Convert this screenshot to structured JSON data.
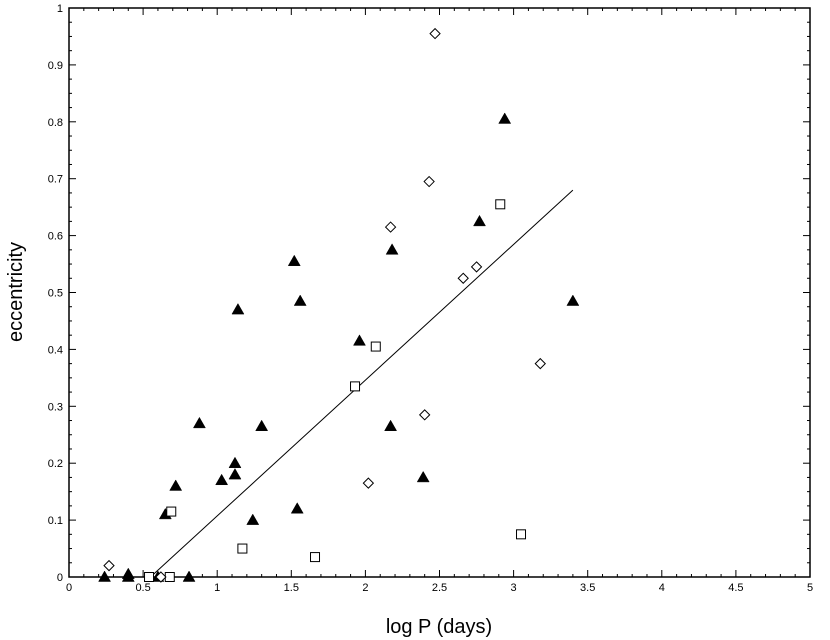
{
  "chart_data": {
    "type": "scatter",
    "title": "",
    "xlabel": "log P (days)",
    "ylabel": "eccentricity",
    "xlim": [
      0,
      5
    ],
    "ylim": [
      0,
      1
    ],
    "xticks": [
      "0",
      "0.5",
      "1",
      "1.5",
      "2",
      "2.5",
      "3",
      "3.5",
      "4",
      "4.5",
      "5"
    ],
    "yticks": [
      "0",
      "0.1",
      "0.2",
      "0.3",
      "0.4",
      "0.5",
      "0.6",
      "0.7",
      "0.8",
      "0.9",
      "1"
    ],
    "grid": false,
    "legend": "none",
    "series": [
      {
        "marker": "filled-triangle",
        "color": "#000000",
        "points": [
          [
            0.24,
            0.0
          ],
          [
            0.4,
            0.005
          ],
          [
            0.4,
            0.0
          ],
          [
            0.6,
            0.0
          ],
          [
            0.65,
            0.11
          ],
          [
            0.72,
            0.16
          ],
          [
            0.81,
            0.0
          ],
          [
            0.88,
            0.27
          ],
          [
            1.03,
            0.17
          ],
          [
            1.12,
            0.2
          ],
          [
            1.12,
            0.18
          ],
          [
            1.14,
            0.47
          ],
          [
            1.24,
            0.1
          ],
          [
            1.3,
            0.265
          ],
          [
            1.52,
            0.555
          ],
          [
            1.54,
            0.12
          ],
          [
            1.56,
            0.485
          ],
          [
            1.96,
            0.415
          ],
          [
            2.17,
            0.265
          ],
          [
            2.18,
            0.575
          ],
          [
            2.39,
            0.175
          ],
          [
            2.77,
            0.625
          ],
          [
            2.94,
            0.805
          ],
          [
            3.4,
            0.485
          ]
        ]
      },
      {
        "marker": "open-square",
        "color": "#000000",
        "points": [
          [
            0.54,
            0.0
          ],
          [
            0.68,
            0.0
          ],
          [
            0.69,
            0.115
          ],
          [
            1.17,
            0.05
          ],
          [
            1.66,
            0.035
          ],
          [
            1.93,
            0.335
          ],
          [
            2.07,
            0.405
          ],
          [
            2.91,
            0.655
          ],
          [
            3.05,
            0.075
          ]
        ]
      },
      {
        "marker": "open-diamond",
        "color": "#000000",
        "points": [
          [
            0.27,
            0.02
          ],
          [
            0.62,
            0.0
          ],
          [
            2.02,
            0.165
          ],
          [
            2.17,
            0.615
          ],
          [
            2.4,
            0.285
          ],
          [
            2.43,
            0.695
          ],
          [
            2.47,
            0.955
          ],
          [
            2.66,
            0.525
          ],
          [
            2.75,
            0.545
          ],
          [
            3.18,
            0.375
          ]
        ]
      }
    ],
    "fit_line": {
      "color": "#000000",
      "points": [
        [
          0.55,
          0.0
        ],
        [
          3.4,
          0.68
        ]
      ]
    }
  }
}
